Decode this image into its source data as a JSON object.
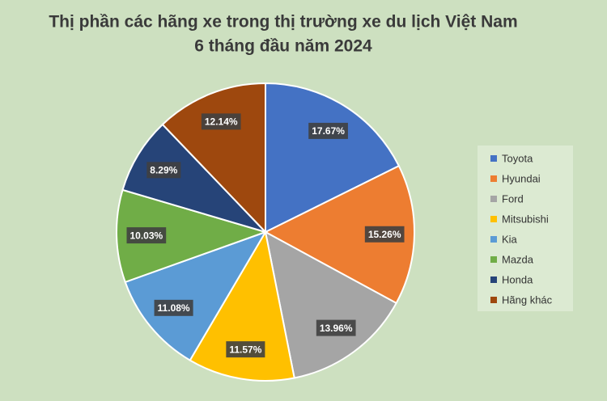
{
  "chart_data": {
    "type": "pie",
    "title": [
      "Thị phần các hãng xe trong thị trường xe du lịch Việt Nam",
      "6 tháng đầu năm 2024"
    ],
    "categories": [
      "Toyota",
      "Hyundai",
      "Ford",
      "Mitsubishi",
      "Kia",
      "Mazda",
      "Honda",
      "Hãng khác"
    ],
    "values": [
      17.67,
      15.26,
      13.96,
      11.57,
      11.08,
      10.03,
      8.29,
      12.14
    ],
    "value_labels": [
      "17.67%",
      "15.26%",
      "13.96%",
      "11.57%",
      "11.08%",
      "10.03%",
      "8.29%",
      "12.14%"
    ],
    "colors": [
      "#4472c4",
      "#ed7d31",
      "#a5a5a5",
      "#ffc000",
      "#5b9bd5",
      "#70ad47",
      "#264478",
      "#9e480e"
    ],
    "legend": "right"
  }
}
